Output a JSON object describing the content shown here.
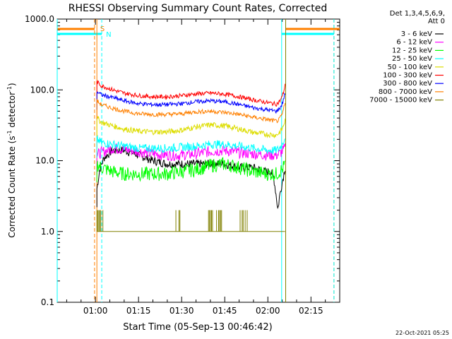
{
  "chart_data": {
    "type": "line",
    "title": "RHESSI Observing Summary Count Rates, Corrected",
    "xlabel": "Start Time (05-Sep-13 00:46:42)",
    "ylabel_main": "Corrected Count Rate (s",
    "ylabel_sup1": "-1",
    "ylabel_mid": " detector",
    "ylabel_sup2": "-1",
    "ylabel_end": ")",
    "yscale": "log",
    "ylim": [
      0.1,
      1000
    ],
    "xlim_minutes": [
      46.7,
      145
    ],
    "x_ticks": [
      {
        "minute": 60,
        "label": "01:00"
      },
      {
        "minute": 75,
        "label": "01:15"
      },
      {
        "minute": 90,
        "label": "01:30"
      },
      {
        "minute": 105,
        "label": "01:45"
      },
      {
        "minute": 120,
        "label": "02:00"
      },
      {
        "minute": 135,
        "label": "02:15"
      }
    ],
    "y_ticks": [
      {
        "value": 0.1,
        "label": "0.1"
      },
      {
        "value": 1,
        "label": "1.0"
      },
      {
        "value": 10,
        "label": "10.0"
      },
      {
        "value": 100,
        "label": "100.0"
      },
      {
        "value": 1000,
        "label": "1000.0"
      }
    ],
    "legend_header": [
      "Det 1,3,4,5,6,9,",
      "Att 0"
    ],
    "legend_position": "right",
    "series": [
      {
        "name": "3 - 6 keV",
        "color": "#000000",
        "x": [
          60.5,
          61.5,
          63,
          66,
          70,
          75,
          80,
          85,
          90,
          95,
          100,
          105,
          110,
          115,
          119,
          121,
          122,
          123,
          123.5,
          124,
          125,
          126
        ],
        "y": [
          4,
          7.5,
          11,
          14,
          14,
          12,
          10,
          9,
          9,
          9,
          9,
          9,
          8,
          8,
          7,
          7,
          6,
          3,
          2,
          3,
          5,
          8
        ]
      },
      {
        "name": "6 - 12 keV",
        "color": "#ff00ff",
        "x": [
          60.5,
          62,
          66,
          70,
          75,
          80,
          85,
          90,
          95,
          100,
          105,
          110,
          115,
          120,
          123,
          124,
          125,
          126
        ],
        "y": [
          12,
          13,
          15,
          14.5,
          13.5,
          12.5,
          12,
          12,
          12.5,
          13.5,
          14,
          13,
          12.5,
          12,
          12,
          12.5,
          13.5,
          15
        ]
      },
      {
        "name": "12 - 25 keV",
        "color": "#00ff00",
        "x": [
          60.5,
          62,
          66,
          70,
          75,
          80,
          85,
          90,
          95,
          100,
          105,
          110,
          115,
          120,
          123,
          124,
          125,
          126
        ],
        "y": [
          9,
          8,
          7,
          6.5,
          6.5,
          6.5,
          6.5,
          7,
          7.5,
          8.5,
          9,
          8,
          7,
          6.5,
          6.5,
          7,
          7.5,
          9
        ]
      },
      {
        "name": "25 - 50 keV",
        "color": "#00ffff",
        "x": [
          60.5,
          62,
          66,
          70,
          75,
          80,
          85,
          90,
          95,
          100,
          105,
          110,
          115,
          120,
          123,
          124,
          125,
          126
        ],
        "y": [
          20,
          18,
          17,
          16,
          15,
          15,
          15,
          15.5,
          16,
          17,
          17,
          16,
          15,
          14,
          14,
          15,
          17,
          22
        ]
      },
      {
        "name": "50 - 100 keV",
        "color": "#dddd00",
        "x": [
          60.5,
          62,
          66,
          70,
          75,
          80,
          85,
          90,
          95,
          100,
          105,
          110,
          115,
          120,
          123,
          124,
          125,
          126
        ],
        "y": [
          40,
          35,
          31,
          28,
          26,
          25.5,
          25.5,
          27,
          30,
          32,
          31,
          28,
          25,
          23.5,
          23,
          25,
          28,
          37
        ]
      },
      {
        "name": "100 - 300 keV",
        "color": "#ff0000",
        "x": [
          60.5,
          62,
          66,
          70,
          75,
          80,
          85,
          90,
          95,
          100,
          105,
          110,
          115,
          120,
          123,
          124,
          125,
          126
        ],
        "y": [
          130,
          115,
          100,
          90,
          83,
          80,
          80,
          83,
          88,
          90,
          87,
          80,
          72,
          66,
          63,
          68,
          80,
          115
        ]
      },
      {
        "name": "300 - 800 keV",
        "color": "#0000ff",
        "x": [
          60.5,
          62,
          66,
          70,
          75,
          80,
          85,
          90,
          95,
          100,
          105,
          110,
          115,
          120,
          123,
          124,
          125,
          126
        ],
        "y": [
          95,
          85,
          78,
          70,
          64,
          62,
          62,
          64,
          68,
          70,
          68,
          62,
          56,
          52,
          50,
          54,
          63,
          90
        ]
      },
      {
        "name": "800 - 7000 keV",
        "color": "#ff8000",
        "x": [
          60.5,
          62,
          66,
          70,
          75,
          80,
          85,
          90,
          95,
          100,
          105,
          110,
          115,
          120,
          123,
          124,
          125,
          126
        ],
        "y": [
          70,
          62,
          55,
          50,
          46,
          45,
          45,
          46,
          49,
          50,
          48,
          45,
          41,
          38,
          36,
          38,
          45,
          65
        ]
      },
      {
        "name": "7000 - 15000 keV",
        "color": "#808000",
        "x": [
          60.5,
          126
        ],
        "y": [
          1,
          1
        ]
      }
    ],
    "overlays": {
      "saa_label": "S",
      "night_label": "N",
      "saa_color": "#ff8000",
      "night_color": "#00ffff",
      "saa_bars": [
        [
          46.7,
          59.7
        ],
        [
          126.2,
          145
        ]
      ],
      "night_bars": [
        [
          46.7,
          62.2
        ],
        [
          124.8,
          143
        ]
      ],
      "saa_lines": [
        59.7,
        143
      ],
      "night_lines": [
        62.2,
        143
      ],
      "vertical_lines": [
        {
          "minute": 60.5,
          "color": "#ff8000"
        },
        {
          "minute": 124.8,
          "color": "#00ffff"
        },
        {
          "minute": 126.2,
          "color": "#808000"
        },
        {
          "minute": 46.7,
          "color": "#00ffff"
        }
      ]
    }
  },
  "footer": {
    "date_stamp": "22-Oct-2021 05:25"
  }
}
